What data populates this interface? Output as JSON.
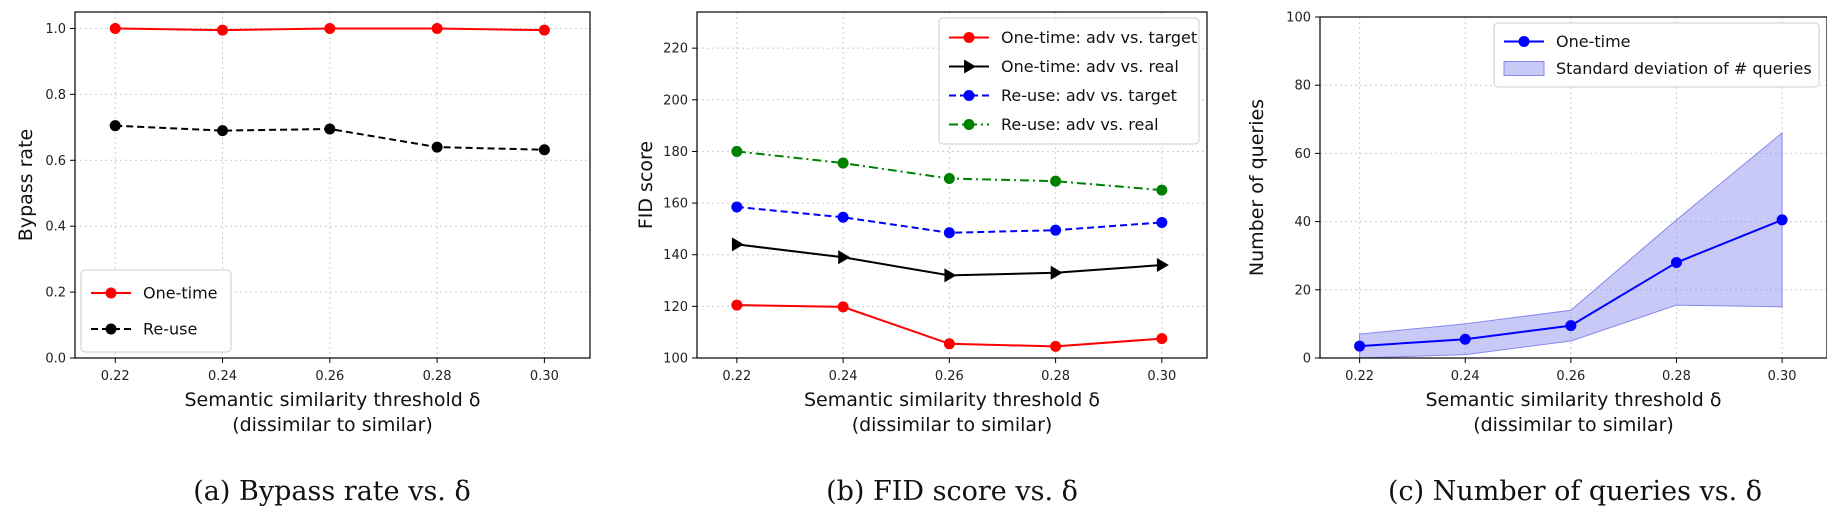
{
  "chart_data": [
    {
      "type": "line",
      "caption": "(a) Bypass rate vs. δ",
      "xlabel": "Semantic similarity threshold δ",
      "xlabel2": "(dissimilar to similar)",
      "ylabel": "Bypass rate",
      "x": [
        0.22,
        0.24,
        0.26,
        0.28,
        0.3
      ],
      "x_tick_labels": [
        "0.22",
        "0.24",
        "0.26",
        "0.28",
        "0.30"
      ],
      "xlim": [
        0.2125,
        0.3085
      ],
      "ylim": [
        0.0,
        1.05
      ],
      "y_ticks": [
        0.0,
        0.2,
        0.4,
        0.6,
        0.8,
        1.0
      ],
      "y_tick_labels": [
        "0.0",
        "0.2",
        "0.4",
        "0.6",
        "0.8",
        "1.0"
      ],
      "grid": true,
      "legend_position": "bottom-left",
      "series": [
        {
          "name": "One-time",
          "color": "#ff0000",
          "linestyle": "solid",
          "marker": "circle",
          "values": [
            1.0,
            0.995,
            1.0,
            1.0,
            0.995
          ]
        },
        {
          "name": "Re-use",
          "color": "#000000",
          "linestyle": "dashed",
          "marker": "circle",
          "values": [
            0.705,
            0.69,
            0.695,
            0.64,
            0.632
          ]
        }
      ]
    },
    {
      "type": "line",
      "caption": "(b) FID score vs. δ",
      "xlabel": "Semantic similarity threshold δ",
      "xlabel2": "(dissimilar to similar)",
      "ylabel": "FID score",
      "x": [
        0.22,
        0.24,
        0.26,
        0.28,
        0.3
      ],
      "x_tick_labels": [
        "0.22",
        "0.24",
        "0.26",
        "0.28",
        "0.30"
      ],
      "xlim": [
        0.2125,
        0.3085
      ],
      "ylim": [
        100,
        234
      ],
      "y_ticks": [
        100,
        120,
        140,
        160,
        180,
        200,
        220
      ],
      "y_tick_labels": [
        "100",
        "120",
        "140",
        "160",
        "180",
        "200",
        "220"
      ],
      "grid": true,
      "legend_position": "top-right",
      "series": [
        {
          "name": "One-time: adv vs. target",
          "color": "#ff0000",
          "linestyle": "solid",
          "marker": "circle",
          "values": [
            120.5,
            119.8,
            105.5,
            104.5,
            107.5
          ]
        },
        {
          "name": "One-time: adv vs. real",
          "color": "#000000",
          "linestyle": "solid",
          "marker": "triangle-right",
          "values": [
            144,
            139,
            132,
            133,
            136
          ]
        },
        {
          "name": "Re-use: adv vs. target",
          "color": "#0000ff",
          "linestyle": "dashed",
          "marker": "circle",
          "values": [
            158.5,
            154.5,
            148.5,
            149.5,
            152.5
          ]
        },
        {
          "name": "Re-use: adv vs. real",
          "color": "#008000",
          "linestyle": "dashdot",
          "marker": "circle",
          "values": [
            180,
            175.5,
            169.5,
            168.5,
            165
          ]
        }
      ]
    },
    {
      "type": "line",
      "caption": "(c) Number of queries vs. δ",
      "xlabel": "Semantic similarity threshold δ",
      "xlabel2": "(dissimilar to similar)",
      "ylabel": "Number of queries",
      "x": [
        0.22,
        0.24,
        0.26,
        0.28,
        0.3
      ],
      "x_tick_labels": [
        "0.22",
        "0.24",
        "0.26",
        "0.28",
        "0.30"
      ],
      "xlim": [
        0.2125,
        0.3085
      ],
      "ylim": [
        0,
        100
      ],
      "y_ticks": [
        0,
        20,
        40,
        60,
        80,
        100
      ],
      "y_tick_labels": [
        "0",
        "20",
        "40",
        "60",
        "80",
        "100"
      ],
      "grid": true,
      "legend_position": "top-right",
      "series": [
        {
          "name": "One-time",
          "color": "#0000ff",
          "linestyle": "solid",
          "marker": "circle",
          "values": [
            3.5,
            5.5,
            9.5,
            28,
            40.5
          ]
        }
      ],
      "band": {
        "name": "Standard deviation of # queries",
        "color": "#8888ee",
        "lower": [
          0,
          1,
          5,
          15.5,
          15
        ],
        "upper": [
          7,
          10,
          14,
          40.5,
          66
        ]
      }
    }
  ]
}
